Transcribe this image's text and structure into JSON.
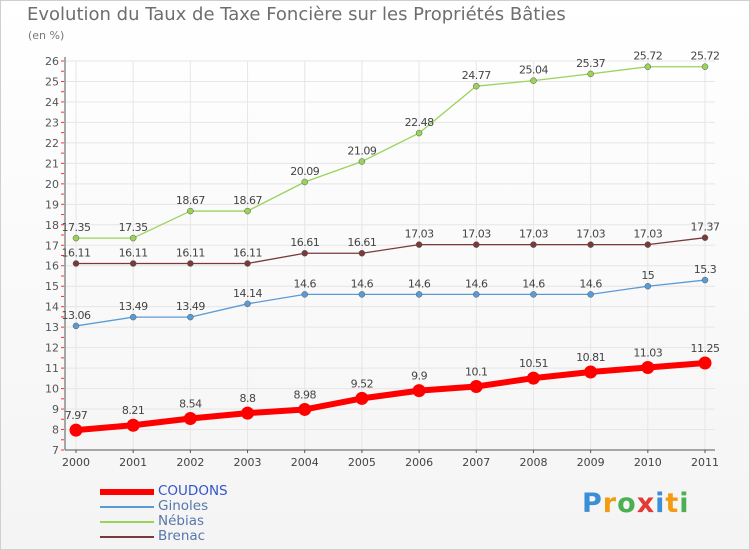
{
  "title": "Evolution du Taux de Taxe Foncière sur les Propriétés Bâties",
  "unit_label": "(en %)",
  "logo": {
    "text": "Proxiti",
    "letters": [
      {
        "ch": "P",
        "color": "#3a8fd6"
      },
      {
        "ch": "r",
        "color": "#f39c12"
      },
      {
        "ch": "o",
        "color": "#4caf50"
      },
      {
        "ch": "x",
        "color": "#e53935"
      },
      {
        "ch": "i",
        "color": "#3a8fd6"
      },
      {
        "ch": "t",
        "color": "#f39c12"
      },
      {
        "ch": "i",
        "color": "#4caf50"
      }
    ]
  },
  "chart_data": {
    "type": "line",
    "title": "Evolution du Taux de Taxe Foncière sur les Propriétés Bâties",
    "ylabel": "(en %)",
    "xlabel": "",
    "x": [
      "2000",
      "2001",
      "2002",
      "2003",
      "2004",
      "2005",
      "2006",
      "2007",
      "2008",
      "2009",
      "2010",
      "2011"
    ],
    "yticks": [
      "7",
      "8",
      "9",
      "10",
      "11",
      "12",
      "13",
      "14",
      "15",
      "16",
      "17",
      "18",
      "19",
      "20",
      "21",
      "22",
      "23",
      "24",
      "25",
      "26"
    ],
    "ylim": [
      7,
      26
    ],
    "grid": true,
    "legend_position": "bottom-left",
    "series": [
      {
        "name": "Nébias",
        "color": "#99d35a",
        "style": "thin",
        "values": [
          17.35,
          17.35,
          18.67,
          18.67,
          20.09,
          21.09,
          22.48,
          24.77,
          25.04,
          25.37,
          25.72,
          25.72
        ],
        "labels": [
          "17.35",
          "17.35",
          "18.67",
          "18.67",
          "20.09",
          "21.09",
          "22.48",
          "24.77",
          "25.04",
          "25.37",
          "25.72",
          "25.72"
        ]
      },
      {
        "name": "Brenac",
        "color": "#7a3a3a",
        "style": "thin",
        "values": [
          16.11,
          16.11,
          16.11,
          16.11,
          16.61,
          16.61,
          17.03,
          17.03,
          17.03,
          17.03,
          17.03,
          17.37
        ],
        "labels": [
          "16.11",
          "16.11",
          "16.11",
          "16.11",
          "16.61",
          "16.61",
          "17.03",
          "17.03",
          "17.03",
          "17.03",
          "17.03",
          "17.37"
        ]
      },
      {
        "name": "Ginoles",
        "color": "#5b9bd5",
        "style": "thin",
        "values": [
          13.06,
          13.49,
          13.49,
          14.14,
          14.6,
          14.6,
          14.6,
          14.6,
          14.6,
          14.6,
          15,
          15.3
        ],
        "labels": [
          "13.06",
          "13.49",
          "13.49",
          "14.14",
          "14.6",
          "14.6",
          "14.6",
          "14.6",
          "14.6",
          "14.6",
          "15",
          "15.3"
        ]
      },
      {
        "name": "COUDONS",
        "color": "#ff0000",
        "style": "thick",
        "values": [
          7.97,
          8.21,
          8.54,
          8.8,
          8.98,
          9.52,
          9.9,
          10.1,
          10.51,
          10.81,
          11.03,
          11.25
        ],
        "labels": [
          "7.97",
          "8.21",
          "8.54",
          "8.8",
          "8.98",
          "9.52",
          "9.9",
          "10.1",
          "10.51",
          "10.81",
          "11.03",
          "11.25"
        ]
      }
    ],
    "legend": [
      {
        "name": "COUDONS",
        "color": "#ff0000"
      },
      {
        "name": "Ginoles",
        "color": "#5b9bd5"
      },
      {
        "name": "Nébias",
        "color": "#99d35a"
      },
      {
        "name": "Brenac",
        "color": "#7a3a3a"
      }
    ]
  }
}
